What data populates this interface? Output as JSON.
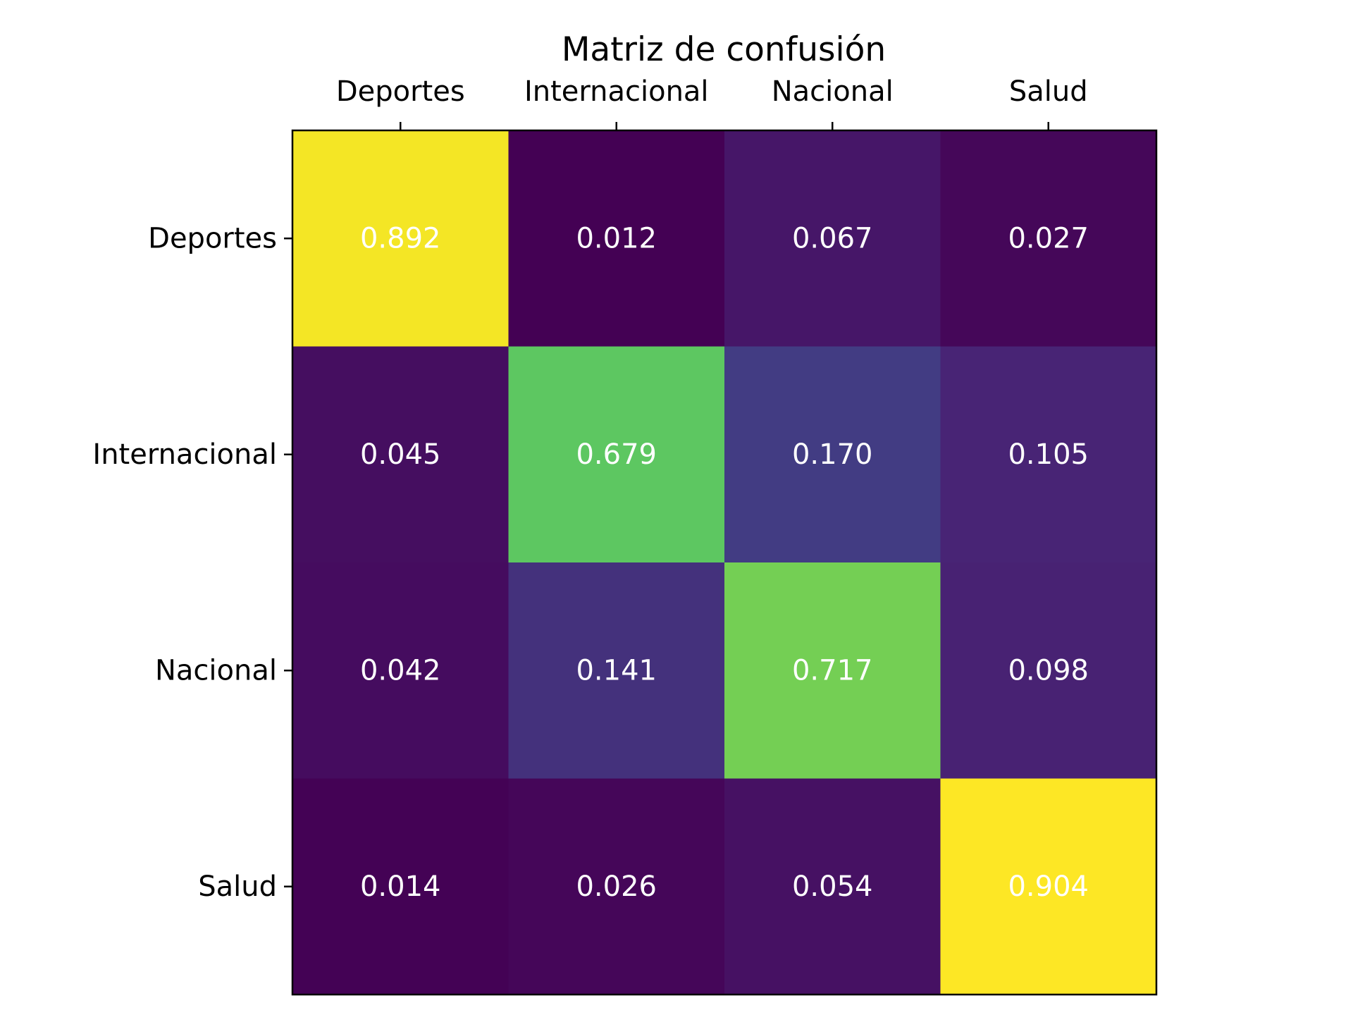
{
  "chart_data": {
    "type": "heatmap",
    "title": "Matriz de confusión",
    "xlabel": "",
    "ylabel": "",
    "x_categories": [
      "Deportes",
      "Internacional",
      "Nacional",
      "Salud"
    ],
    "y_categories": [
      "Deportes",
      "Internacional",
      "Nacional",
      "Salud"
    ],
    "x_tick_position": "top",
    "values": [
      [
        0.892,
        0.012,
        0.067,
        0.027
      ],
      [
        0.045,
        0.679,
        0.17,
        0.105
      ],
      [
        0.042,
        0.141,
        0.717,
        0.098
      ],
      [
        0.014,
        0.026,
        0.054,
        0.904
      ]
    ],
    "value_labels": [
      [
        "0.892",
        "0.012",
        "0.067",
        "0.027"
      ],
      [
        "0.045",
        "0.679",
        "0.170",
        "0.105"
      ],
      [
        "0.042",
        "0.141",
        "0.717",
        "0.098"
      ],
      [
        "0.014",
        "0.026",
        "0.054",
        "0.904"
      ]
    ],
    "colormap": "viridis",
    "value_range": [
      0.012,
      0.904
    ],
    "grid": false,
    "annotation_color": "#ffffff"
  }
}
